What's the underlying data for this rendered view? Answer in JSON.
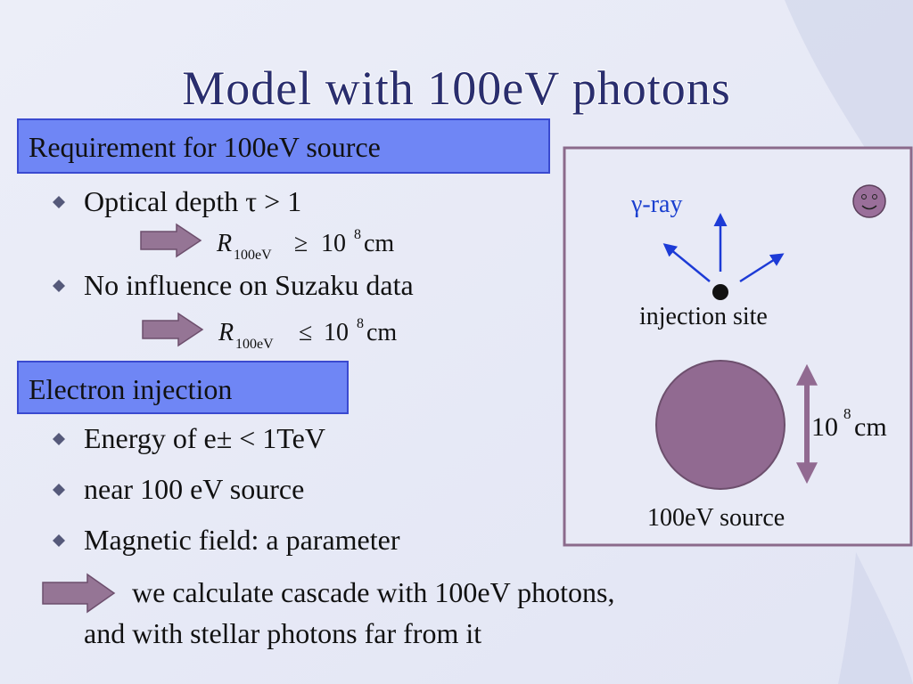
{
  "title": "Model with 100eV photons",
  "sections": [
    {
      "header": "Requirement for 100eV source",
      "bullets": [
        {
          "text": "Optical depth τ > 1",
          "formula": {
            "symbol": "R",
            "subscript": "100eV",
            "relation": "≥",
            "base": "10",
            "exponent": "8",
            "unit": "cm"
          }
        },
        {
          "text": "No influence on Suzaku data",
          "formula": {
            "symbol": "R",
            "subscript": "100eV",
            "relation": "≤",
            "base": "10",
            "exponent": "8",
            "unit": "cm"
          }
        }
      ]
    },
    {
      "header": "Electron injection",
      "bullets": [
        {
          "text": "Energy of e± < 1TeV"
        },
        {
          "text": "near 100 eV source"
        },
        {
          "text": "Magnetic field: a parameter"
        }
      ]
    }
  ],
  "conclusion": [
    "we calculate cascade with 100eV photons,",
    "and with stellar photons far from it"
  ],
  "diagram": {
    "gamma_ray": "γ-ray",
    "injection_site": "injection site",
    "size": {
      "base": "10",
      "exponent": "8",
      "unit": "cm"
    },
    "source": "100eV source"
  }
}
